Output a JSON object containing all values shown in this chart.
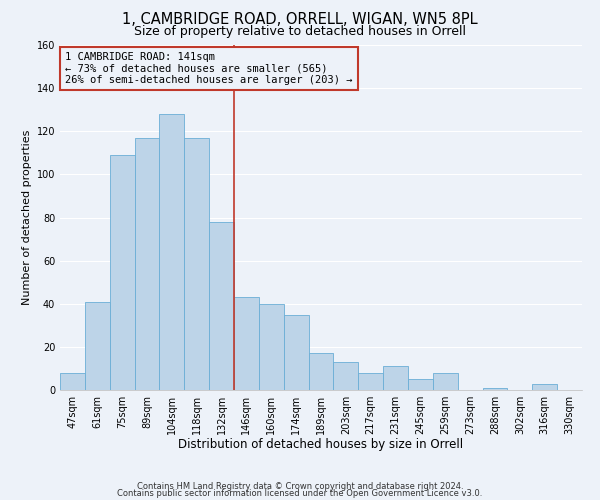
{
  "title": "1, CAMBRIDGE ROAD, ORRELL, WIGAN, WN5 8PL",
  "subtitle": "Size of property relative to detached houses in Orrell",
  "xlabel": "Distribution of detached houses by size in Orrell",
  "ylabel": "Number of detached properties",
  "bar_labels": [
    "47sqm",
    "61sqm",
    "75sqm",
    "89sqm",
    "104sqm",
    "118sqm",
    "132sqm",
    "146sqm",
    "160sqm",
    "174sqm",
    "189sqm",
    "203sqm",
    "217sqm",
    "231sqm",
    "245sqm",
    "259sqm",
    "273sqm",
    "288sqm",
    "302sqm",
    "316sqm",
    "330sqm"
  ],
  "bar_values": [
    8,
    41,
    109,
    117,
    128,
    117,
    78,
    43,
    40,
    35,
    17,
    13,
    8,
    11,
    5,
    8,
    0,
    1,
    0,
    3,
    0
  ],
  "bar_color": "#bdd4e8",
  "bar_edge_color": "#6aaed6",
  "vline_x": 6.5,
  "vline_color": "#c0392b",
  "annotation_text": "1 CAMBRIDGE ROAD: 141sqm\n← 73% of detached houses are smaller (565)\n26% of semi-detached houses are larger (203) →",
  "annotation_box_edge": "#c0392b",
  "ylim": [
    0,
    160
  ],
  "yticks": [
    0,
    20,
    40,
    60,
    80,
    100,
    120,
    140,
    160
  ],
  "footer1": "Contains HM Land Registry data © Crown copyright and database right 2024.",
  "footer2": "Contains public sector information licensed under the Open Government Licence v3.0.",
  "bg_color": "#edf2f9",
  "grid_color": "#ffffff",
  "title_fontsize": 10.5,
  "subtitle_fontsize": 9,
  "xlabel_fontsize": 8.5,
  "ylabel_fontsize": 8,
  "tick_fontsize": 7,
  "annotation_fontsize": 7.5,
  "footer_fontsize": 6
}
